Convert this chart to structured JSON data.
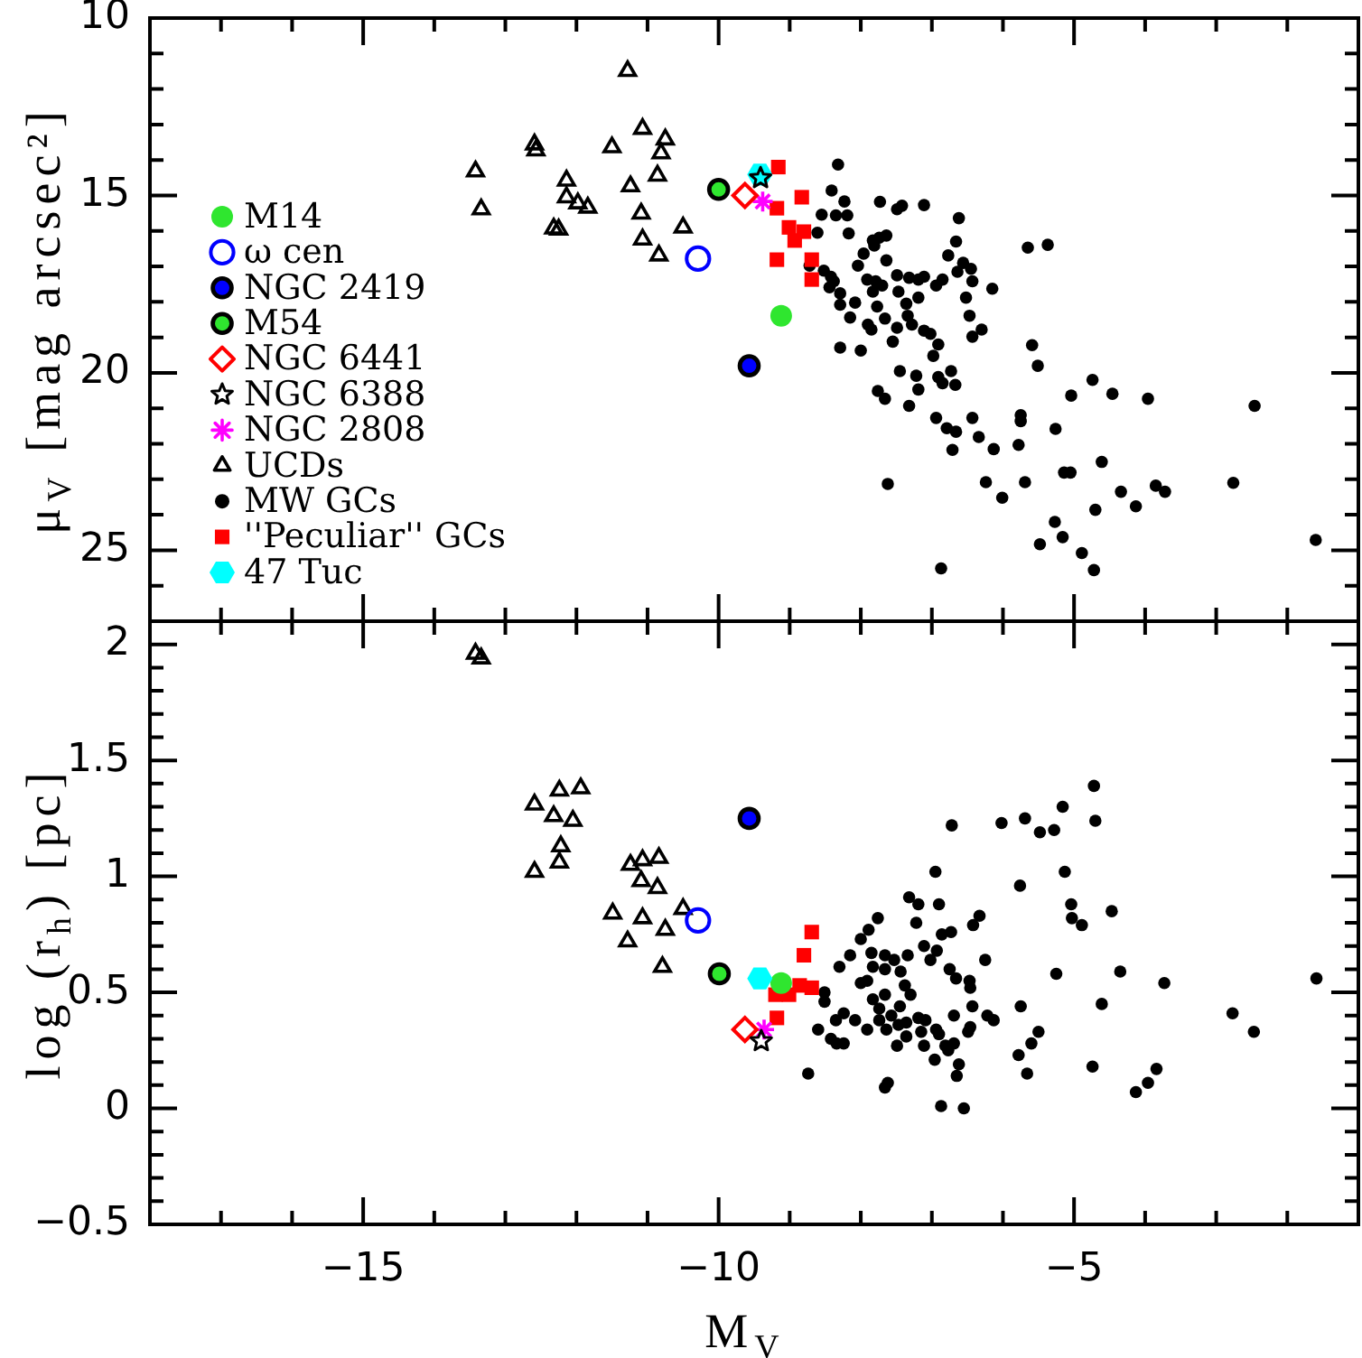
{
  "chart_data": [
    {
      "type": "scatter",
      "ylabel": "μ$_{V}$ [mag arcsec²]",
      "xlim": [
        -18,
        -1
      ],
      "ylim": [
        27,
        10
      ],
      "tick_labels": "y",
      "legend": "bottom left",
      "xticks": [
        {
          "value": -17,
          "label": null
        },
        {
          "value": -16,
          "label": null
        },
        -15,
        {
          "value": -14,
          "label": null
        },
        {
          "value": -13,
          "label": null
        },
        {
          "value": -12,
          "label": null
        },
        {
          "value": -11,
          "label": null
        },
        -10,
        {
          "value": -9,
          "label": null
        },
        {
          "value": -8,
          "label": null
        },
        {
          "value": -7,
          "label": null
        },
        {
          "value": -6,
          "label": null
        },
        -5,
        {
          "value": -4,
          "label": null
        },
        {
          "value": -3,
          "label": null
        },
        {
          "value": -2,
          "label": null
        }
      ],
      "yticks": [
        10,
        {
          "value": 11,
          "label": null
        },
        {
          "value": 12,
          "label": null
        },
        {
          "value": 13,
          "label": null
        },
        {
          "value": 14,
          "label": null
        },
        15,
        {
          "value": 16,
          "label": null
        },
        {
          "value": 17,
          "label": null
        },
        {
          "value": 18,
          "label": null
        },
        {
          "value": 19,
          "label": null
        },
        20,
        {
          "value": 21,
          "label": null
        },
        {
          "value": 22,
          "label": null
        },
        {
          "value": 23,
          "label": null
        },
        {
          "value": 24,
          "label": null
        },
        25,
        {
          "value": 26,
          "label": null
        }
      ],
      "series": [
        {
          "name": "M14",
          "color": "#2fe62f",
          "marker": "circle",
          "x": [
            -9.12
          ],
          "values": [
            18.39
          ]
        },
        {
          "name": "ω cen",
          "color": "#0000ff",
          "marker": "circle",
          "x": [
            -10.29
          ],
          "values": [
            16.78
          ]
        },
        {
          "name": "NGC 2419",
          "color": "#0000ff",
          "marker": "circle",
          "x": [
            -9.57
          ],
          "values": [
            19.8
          ]
        },
        {
          "name": "M54",
          "color": "#2fe62f",
          "marker": "circle",
          "x": [
            -10.0
          ],
          "values": [
            14.83
          ]
        },
        {
          "name": "NGC 6441",
          "color": "#ff0000",
          "marker": "diamond",
          "x": [
            -9.63
          ],
          "values": [
            15.0
          ]
        },
        {
          "name": "NGC 6388",
          "color": "#000000",
          "marker": "star",
          "x": [
            -9.41
          ],
          "values": [
            14.51
          ]
        },
        {
          "name": "NGC 2808",
          "color": "#ff00ff",
          "marker": "cross",
          "x": [
            -9.38
          ],
          "values": [
            15.17
          ]
        },
        {
          "name": "UCDs",
          "color": "#000000",
          "marker": "triangle",
          "x": [
            -11.28,
            -11.07,
            -10.75,
            -10.81,
            -11.5,
            -12.59,
            -12.57,
            -13.42,
            -10.86,
            -12.14,
            -11.24,
            -12.14,
            -11.98,
            -11.84,
            -13.34,
            -11.09,
            -12.32,
            -12.25,
            -11.07,
            -10.84,
            -10.5
          ],
          "values": [
            11.49,
            13.12,
            13.42,
            13.81,
            13.64,
            13.56,
            13.73,
            14.32,
            14.44,
            14.58,
            14.74,
            15.05,
            15.22,
            15.34,
            15.39,
            15.51,
            15.93,
            15.96,
            16.24,
            16.69,
            15.9
          ]
        },
        {
          "name": "MW GCs",
          "color": "#000000",
          "marker": "circle",
          "x": [
            -8.32,
            -8.41,
            -8.23,
            -7.73,
            -7.49,
            -7.42,
            -7.11,
            -8.55,
            -8.35,
            -8.19,
            -6.62,
            -8.61,
            -8.17,
            -7.83,
            -7.74,
            -7.64,
            -7.81,
            -6.66,
            -5.65,
            -5.37,
            -7.96,
            -6.77,
            -7.64,
            -8.04,
            -6.56,
            -6.45,
            -6.64,
            -8.72,
            -8.52,
            -8.42,
            -8.38,
            -8.44,
            -8.29,
            -7.91,
            -7.79,
            -7.7,
            -7.83,
            -7.49,
            -7.32,
            -7.19,
            -7.11,
            -6.94,
            -6.85,
            -6.43,
            -6.15,
            -7.47,
            -7.36,
            -7.19,
            -7.77,
            -8.08,
            -8.29,
            -8.15,
            -7.66,
            -7.34,
            -7.28,
            -7.49,
            -7.9,
            -7.85,
            -6.52,
            -6.47,
            -6.3,
            -6.43,
            -7.11,
            -7.02,
            -6.91,
            -6.98,
            -7.55,
            -8.29,
            -8.0,
            -5.59,
            -5.51,
            -7.45,
            -7.22,
            -6.73,
            -6.91,
            -6.85,
            -6.67,
            -7.19,
            -7.76,
            -7.66,
            -7.32,
            -4.74,
            -4.46,
            -3.96,
            -5.04,
            -2.46,
            -6.94,
            -6.43,
            -5.75,
            -5.75,
            -5.26,
            -6.79,
            -6.66,
            -6.34,
            -6.71,
            -6.13,
            -5.78,
            -4.61,
            -5.14,
            -5.05,
            -7.62,
            -6.24,
            -5.69,
            -6.01,
            -4.34,
            -3.85,
            -3.72,
            -4.13,
            -4.7,
            -2.76,
            -5.27,
            -5.16,
            -1.6,
            -5.48,
            -4.89,
            -4.72,
            -6.87
          ],
          "values": [
            14.13,
            14.86,
            15.17,
            15.18,
            15.39,
            15.29,
            15.27,
            15.54,
            15.56,
            15.56,
            15.64,
            16.05,
            16.07,
            16.27,
            16.19,
            16.13,
            16.41,
            16.3,
            16.47,
            16.39,
            16.64,
            16.69,
            16.83,
            16.98,
            16.9,
            17.07,
            17.15,
            16.98,
            17.12,
            17.29,
            17.42,
            17.59,
            17.76,
            17.37,
            17.42,
            17.54,
            17.71,
            17.25,
            17.32,
            17.37,
            17.29,
            17.54,
            17.37,
            17.42,
            17.63,
            17.71,
            18.05,
            17.88,
            18.13,
            18.02,
            18.08,
            18.44,
            18.47,
            18.39,
            18.64,
            18.73,
            18.64,
            18.78,
            17.88,
            18.39,
            18.78,
            18.98,
            18.81,
            18.9,
            19.2,
            19.52,
            19.12,
            19.29,
            19.37,
            19.22,
            19.8,
            19.95,
            20.08,
            19.95,
            20.12,
            20.29,
            20.34,
            20.47,
            20.51,
            20.73,
            20.93,
            20.2,
            20.59,
            20.73,
            20.64,
            20.93,
            21.27,
            21.27,
            21.19,
            21.36,
            21.58,
            21.56,
            21.66,
            21.81,
            22.17,
            22.15,
            22.03,
            22.51,
            22.81,
            22.81,
            23.13,
            23.08,
            23.08,
            23.52,
            23.35,
            23.18,
            23.35,
            23.76,
            23.86,
            23.1,
            24.2,
            24.63,
            24.71,
            24.83,
            25.08,
            25.56,
            25.51
          ]
        },
        {
          "name": "''Peculiar'' GCs",
          "color": "#ff0000",
          "marker": "square",
          "x": [
            -9.16,
            -8.83,
            -9.18,
            -9.01,
            -8.8,
            -8.93,
            -9.18,
            -8.69,
            -8.69
          ],
          "values": [
            14.2,
            15.05,
            15.36,
            15.9,
            16.02,
            16.27,
            16.81,
            16.81,
            17.37
          ]
        },
        {
          "name": "47 Tuc",
          "color": "#00ffff",
          "x": [
            -9.42
          ],
          "values": [
            14.41
          ]
        }
      ]
    },
    {
      "type": "scatter",
      "xlabel": "M$_{V}$",
      "ylabel": "log (r$_{h}$) [pc]",
      "xlim": [
        -18,
        -1
      ],
      "ylim": [
        -0.5,
        2.1
      ],
      "xticks": [
        {
          "value": -17,
          "label": null
        },
        {
          "value": -16,
          "label": null
        },
        {
          "value": -15,
          "label": "−15"
        },
        {
          "value": -14,
          "label": null
        },
        {
          "value": -13,
          "label": null
        },
        {
          "value": -12,
          "label": null
        },
        {
          "value": -11,
          "label": null
        },
        {
          "value": -10,
          "label": "−10"
        },
        {
          "value": -9,
          "label": null
        },
        {
          "value": -8,
          "label": null
        },
        {
          "value": -7,
          "label": null
        },
        {
          "value": -6,
          "label": null
        },
        {
          "value": -5,
          "label": "−5"
        },
        {
          "value": -4,
          "label": null
        },
        {
          "value": -3,
          "label": null
        },
        {
          "value": -2,
          "label": null
        }
      ],
      "yticks": [
        {
          "value": -0.5,
          "label": "−0.5"
        },
        {
          "value": -0.4,
          "label": null
        },
        {
          "value": -0.3,
          "label": null
        },
        {
          "value": -0.2,
          "label": null
        },
        {
          "value": -0.1,
          "label": null
        },
        0,
        {
          "value": 0.1,
          "label": null
        },
        {
          "value": 0.2,
          "label": null
        },
        {
          "value": 0.3,
          "label": null
        },
        {
          "value": 0.4,
          "label": null
        },
        0.5,
        {
          "value": 0.6,
          "label": null
        },
        {
          "value": 0.7,
          "label": null
        },
        {
          "value": 0.8,
          "label": null
        },
        {
          "value": 0.9,
          "label": null
        },
        1,
        {
          "value": 1.1,
          "label": null
        },
        {
          "value": 1.2,
          "label": null
        },
        {
          "value": 1.3,
          "label": null
        },
        {
          "value": 1.4,
          "label": null
        },
        1.5,
        {
          "value": 1.6,
          "label": null
        },
        {
          "value": 1.7,
          "label": null
        },
        {
          "value": 1.8,
          "label": null
        },
        {
          "value": 1.9,
          "label": null
        },
        2
      ],
      "series": [
        {
          "color": "#2fe62f",
          "marker": "circle",
          "x": [
            -9.12
          ],
          "values": [
            0.54
          ]
        },
        {
          "color": "#0000ff",
          "marker": "circle",
          "x": [
            -10.29
          ],
          "values": [
            0.81
          ]
        },
        {
          "color": "#0000ff",
          "marker": "circle",
          "x": [
            -9.57
          ],
          "values": [
            1.25
          ]
        },
        {
          "color": "#2fe62f",
          "marker": "circle",
          "x": [
            -9.99
          ],
          "values": [
            0.58
          ]
        },
        {
          "color": "#ff0000",
          "marker": "diamond",
          "x": [
            -9.63
          ],
          "values": [
            0.34
          ]
        },
        {
          "color": "#000000",
          "marker": "star",
          "x": [
            -9.4
          ],
          "values": [
            0.29
          ]
        },
        {
          "color": "#ff00ff",
          "marker": "cross",
          "x": [
            -9.36
          ],
          "values": [
            0.34
          ]
        },
        {
          "color": "#000000",
          "marker": "triangle",
          "x": [
            -13.42,
            -13.34,
            -12.59,
            -12.24,
            -11.94,
            -12.32,
            -12.05,
            -12.22,
            -12.24,
            -12.59,
            -11.24,
            -11.07,
            -10.84,
            -11.09,
            -10.86,
            -11.49,
            -11.07,
            -10.5,
            -10.75,
            -11.28,
            -10.79
          ],
          "values": [
            1.96,
            1.94,
            1.31,
            1.37,
            1.38,
            1.26,
            1.24,
            1.13,
            1.06,
            1.02,
            1.05,
            1.07,
            1.08,
            0.98,
            0.95,
            0.84,
            0.82,
            0.86,
            0.77,
            0.72,
            0.61
          ]
        },
        {
          "color": "#000000",
          "marker": "circle",
          "x": [
            -6.72,
            -6.02,
            -5.69,
            -5.48,
            -5.28,
            -5.16,
            -4.72,
            -4.7,
            -6.95,
            -5.76,
            -5.13,
            -7.32,
            -7.19,
            -6.9,
            -5.04,
            -5.03,
            -4.89,
            -4.47,
            -7.76,
            -7.89,
            -8.0,
            -7.22,
            -6.33,
            -6.42,
            -6.73,
            -6.86,
            -8.15,
            -8.3,
            -7.85,
            -7.66,
            -7.53,
            -7.83,
            -7.66,
            -7.44,
            -7.34,
            -7.11,
            -7.02,
            -6.93,
            -6.25,
            -6.75,
            -6.66,
            -6.47,
            -6.46,
            -7.38,
            -7.3,
            -8.0,
            -7.91,
            -8.51,
            -8.51,
            -7.66,
            -7.83,
            -6.43,
            -7.45,
            -7.74,
            -8.24,
            -8.35,
            -8.08,
            -7.91,
            -7.74,
            -7.57,
            -7.19,
            -7.09,
            -7.36,
            -7.47,
            -7.64,
            -7.15,
            -6.94,
            -6.9,
            -6.69,
            -6.46,
            -6.49,
            -6.22,
            -6.13,
            -5.75,
            -5.25,
            -4.35,
            -4.61,
            -3.73,
            -1.59,
            -2.77,
            -2.47,
            -8.6,
            -8.42,
            -8.34,
            -8.24,
            -7.49,
            -7.36,
            -7.11,
            -6.81,
            -6.69,
            -6.77,
            -6.96,
            -6.62,
            -6.65,
            -8.74,
            -5.78,
            -5.6,
            -5.5,
            -5.66,
            -4.74,
            -3.84,
            -3.96,
            -4.13,
            -7.66,
            -7.62,
            -6.87,
            -6.55
          ],
          "values": [
            1.22,
            1.23,
            1.25,
            1.19,
            1.2,
            1.3,
            1.39,
            1.24,
            1.02,
            0.96,
            1.02,
            0.91,
            0.88,
            0.88,
            0.88,
            0.82,
            0.79,
            0.85,
            0.82,
            0.77,
            0.73,
            0.8,
            0.83,
            0.79,
            0.76,
            0.75,
            0.66,
            0.61,
            0.67,
            0.66,
            0.64,
            0.61,
            0.6,
            0.59,
            0.66,
            0.7,
            0.64,
            0.68,
            0.64,
            0.6,
            0.56,
            0.55,
            0.52,
            0.53,
            0.49,
            0.54,
            0.55,
            0.5,
            0.46,
            0.49,
            0.47,
            0.44,
            0.44,
            0.43,
            0.41,
            0.38,
            0.38,
            0.34,
            0.38,
            0.4,
            0.39,
            0.38,
            0.37,
            0.36,
            0.34,
            0.33,
            0.34,
            0.32,
            0.4,
            0.35,
            0.33,
            0.4,
            0.38,
            0.44,
            0.58,
            0.59,
            0.45,
            0.54,
            0.56,
            0.41,
            0.33,
            0.34,
            0.3,
            0.28,
            0.28,
            0.27,
            0.31,
            0.27,
            0.27,
            0.28,
            0.25,
            0.21,
            0.19,
            0.14,
            0.15,
            0.23,
            0.28,
            0.33,
            0.15,
            0.18,
            0.17,
            0.11,
            0.07,
            0.09,
            0.11,
            0.01,
            0.0
          ]
        },
        {
          "color": "#ff0000",
          "marker": "square",
          "x": [
            -8.69,
            -8.8,
            -9.18,
            -9.2,
            -9.01,
            -8.86,
            -8.69
          ],
          "values": [
            0.76,
            0.66,
            0.39,
            0.49,
            0.49,
            0.53,
            0.52
          ]
        },
        {
          "color": "#00ffff",
          "x": [
            -9.42
          ],
          "values": [
            0.56
          ]
        }
      ]
    }
  ]
}
